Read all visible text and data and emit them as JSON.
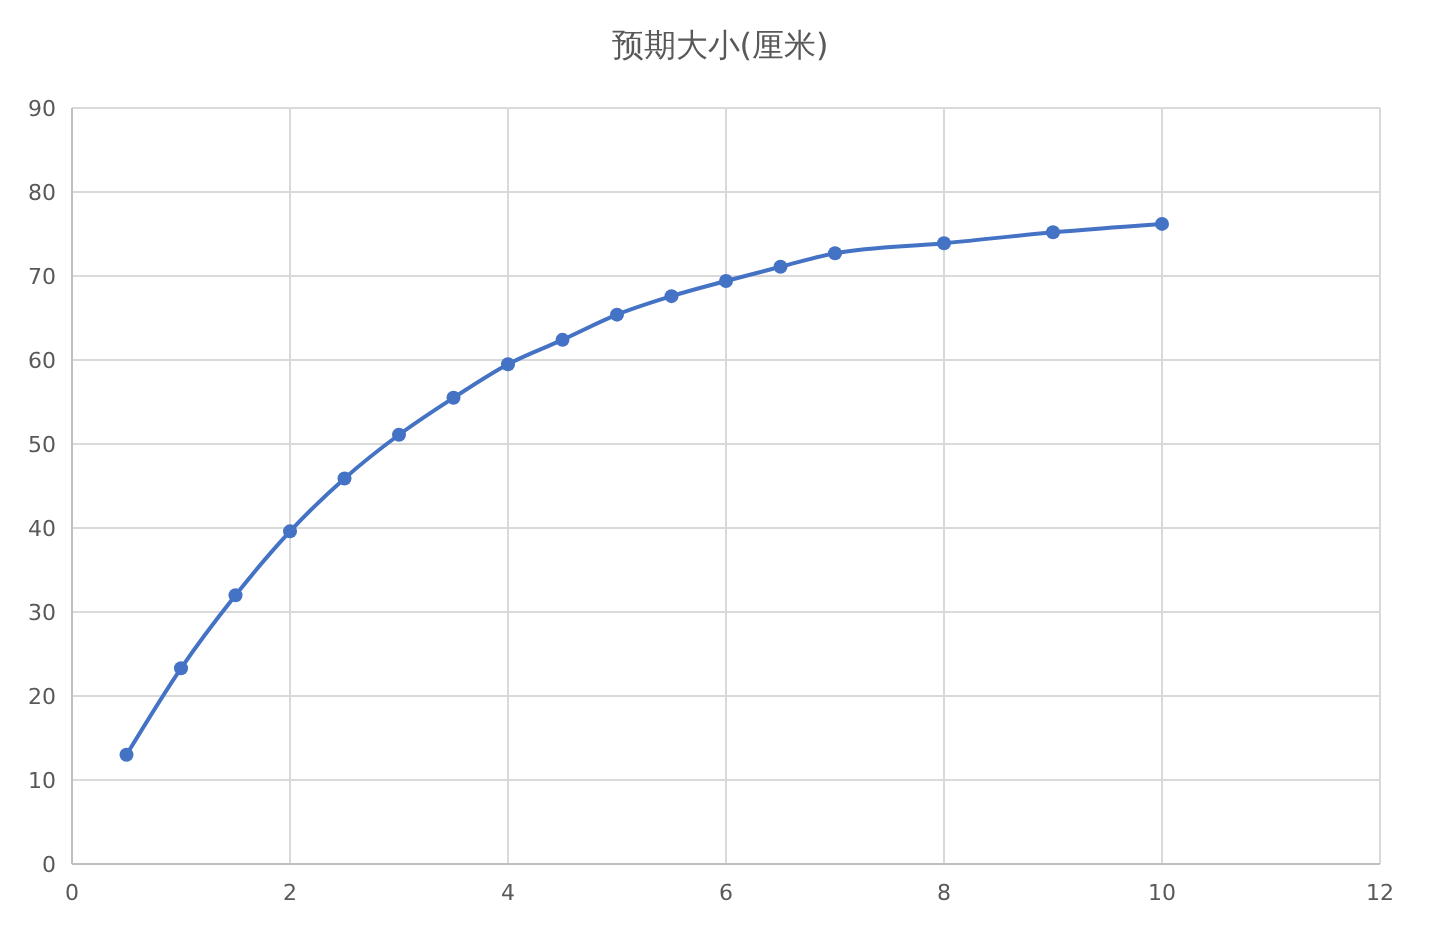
{
  "chart_data": {
    "type": "line",
    "title": "预期大小(厘米)",
    "x": [
      0.5,
      1,
      1.5,
      2,
      2.5,
      3,
      3.5,
      4,
      4.5,
      5,
      5.5,
      6,
      6.5,
      7,
      8,
      9,
      10
    ],
    "series": [
      {
        "color": "#4472c4",
        "values": [
          13,
          23.3,
          32,
          39.6,
          45.9,
          51.1,
          55.5,
          59.5,
          62.4,
          65.4,
          67.6,
          69.4,
          71.1,
          72.7,
          73.9,
          75.2,
          76.2
        ]
      }
    ],
    "xlim": [
      0,
      12
    ],
    "xticks": [
      0,
      2,
      4,
      6,
      8,
      10,
      12
    ],
    "ylim": [
      0,
      90
    ],
    "yticks": [
      0,
      10,
      20,
      30,
      40,
      50,
      60,
      70,
      80,
      90
    ],
    "grid": true,
    "marker": "circle",
    "line_style": "solid"
  }
}
